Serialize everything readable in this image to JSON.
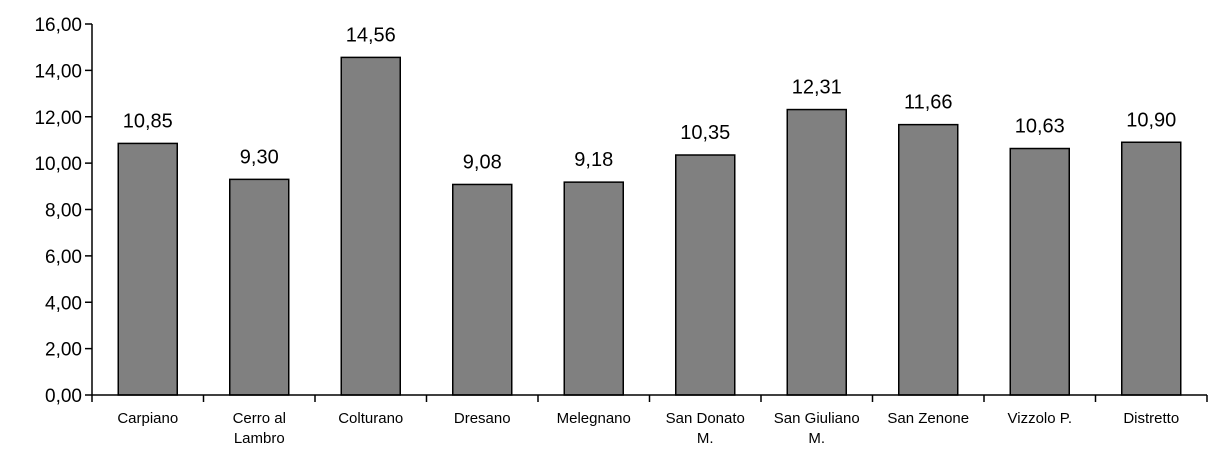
{
  "chart_data": {
    "type": "bar",
    "categories": [
      [
        "Carpiano"
      ],
      [
        "Cerro al",
        "Lambro"
      ],
      [
        "Colturano"
      ],
      [
        "Dresano"
      ],
      [
        "Melegnano"
      ],
      [
        "San Donato",
        "M."
      ],
      [
        "San Giuliano",
        "M."
      ],
      [
        "San Zenone"
      ],
      [
        "Vizzolo P."
      ],
      [
        "Distretto"
      ]
    ],
    "values": [
      10.85,
      9.3,
      14.56,
      9.08,
      9.18,
      10.35,
      12.31,
      11.66,
      10.63,
      10.9
    ],
    "data_labels": [
      "10,85",
      "9,30",
      "14,56",
      "9,08",
      "9,18",
      "10,35",
      "12,31",
      "11,66",
      "10,63",
      "10,90"
    ],
    "ylim": [
      0,
      16
    ],
    "yticks": [
      0,
      2,
      4,
      6,
      8,
      10,
      12,
      14,
      16
    ],
    "ytick_labels": [
      "0,00",
      "2,00",
      "4,00",
      "6,00",
      "8,00",
      "10,00",
      "12,00",
      "14,00",
      "16,00"
    ],
    "title": "",
    "xlabel": "",
    "ylabel": "",
    "grid": false,
    "legend": "none",
    "colors": {
      "bar_fill": "#808080",
      "bar_stroke": "#000000",
      "axis": "#000000"
    }
  }
}
